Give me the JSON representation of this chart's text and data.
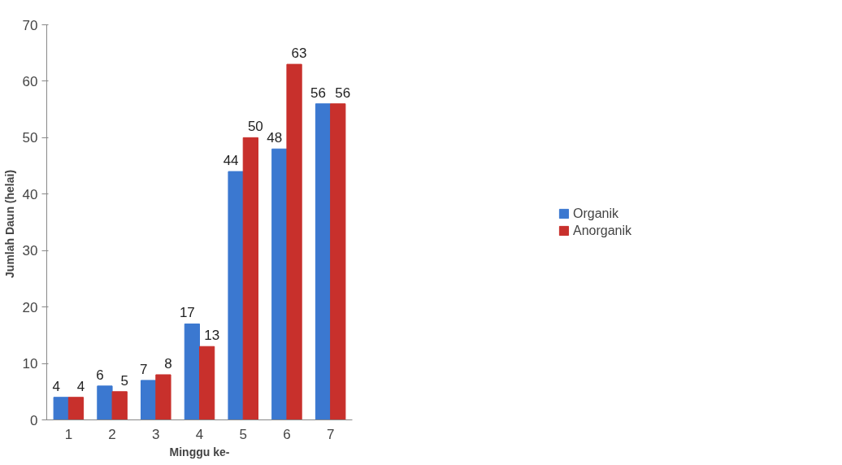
{
  "chart_data": {
    "type": "bar",
    "xlabel": "Minggu ke-",
    "ylabel": "Jumlah Daun  (helai)",
    "categories": [
      "1",
      "2",
      "3",
      "4",
      "5",
      "6",
      "7"
    ],
    "series": [
      {
        "name": "Organik",
        "color": "#3b78d0",
        "values": [
          4,
          6,
          7,
          17,
          44,
          48,
          56
        ]
      },
      {
        "name": "Anorganik",
        "color": "#c8302c",
        "values": [
          4,
          5,
          8,
          13,
          50,
          63,
          56
        ]
      }
    ],
    "ylim": [
      0,
      70
    ],
    "yticks": [
      0,
      10,
      20,
      30,
      40,
      50,
      60,
      70
    ],
    "data_labels": true,
    "legend": "right"
  }
}
